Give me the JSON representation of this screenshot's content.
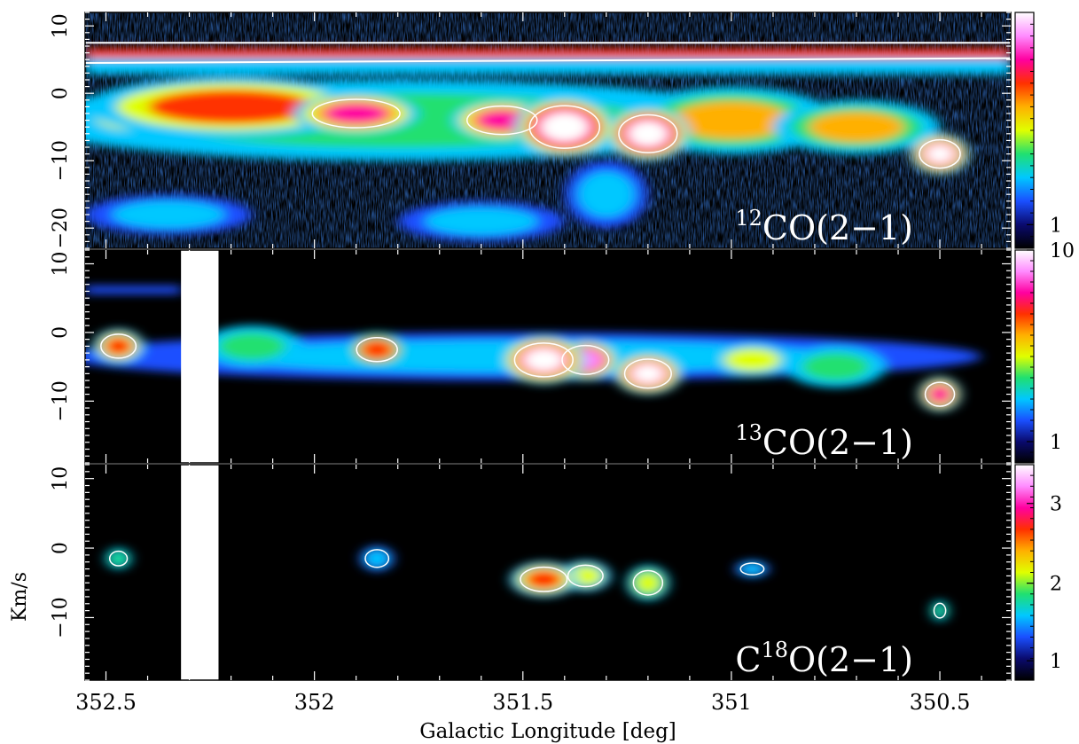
{
  "chart_data": {
    "type": "heatmap",
    "xlabel": "Galactic Longitude [deg]",
    "ylabel": "Km/s",
    "x_ticks": [
      {
        "value": 352.5,
        "label": "352.5"
      },
      {
        "value": 352.0,
        "label": "352"
      },
      {
        "value": 351.5,
        "label": "351.5"
      },
      {
        "value": 351.0,
        "label": "351"
      },
      {
        "value": 350.5,
        "label": "350.5"
      }
    ],
    "xlim": [
      352.55,
      350.33
    ],
    "colormap": [
      "#000000",
      "#0a0a6e",
      "#1a4fff",
      "#00c8ff",
      "#20e070",
      "#e0ff00",
      "#ffb000",
      "#ff3000",
      "#ff00a0",
      "#ff8cff",
      "#ffffff"
    ],
    "panels": [
      {
        "id": "12co",
        "label": {
          "pre": "",
          "sup": "12",
          "main": "CO(2−1)"
        },
        "ylim": [
          -23,
          12
        ],
        "y_ticks": [
          {
            "value": 10,
            "label": "10"
          },
          {
            "value": 0,
            "label": "0"
          },
          {
            "value": -10,
            "label": "−10"
          },
          {
            "value": -20,
            "label": "−20"
          }
        ],
        "colorbar": {
          "max_level": 10,
          "ticks": [
            {
              "level": 1,
              "label": "1"
            }
          ]
        },
        "baseline_level": 1.3,
        "lanes": [
          {
            "v_center": 5.8,
            "width": 0.9,
            "level": 6.5,
            "span": [
              352.55,
              350.33
            ]
          },
          {
            "v_center": 4.0,
            "width": 1.2,
            "level": 3.0,
            "span": [
              352.55,
              350.33
            ]
          }
        ],
        "blobs": [
          {
            "l": 352.45,
            "v": -3,
            "sl": 0.12,
            "sv": 3.5,
            "level": 4.5
          },
          {
            "l": 352.2,
            "v": -2,
            "sl": 0.35,
            "sv": 4.5,
            "level": 6.5
          },
          {
            "l": 351.9,
            "v": -3,
            "sl": 0.15,
            "sv": 3,
            "level": 8
          },
          {
            "l": 351.4,
            "v": -5,
            "sl": 0.12,
            "sv": 4.5,
            "level": 10
          },
          {
            "l": 351.55,
            "v": -4,
            "sl": 0.12,
            "sv": 3,
            "level": 8
          },
          {
            "l": 351.2,
            "v": -6,
            "sl": 0.1,
            "sv": 4,
            "level": 10
          },
          {
            "l": 351.0,
            "v": -4,
            "sl": 0.25,
            "sv": 5,
            "level": 5.5
          },
          {
            "l": 350.7,
            "v": -5,
            "sl": 0.2,
            "sv": 4,
            "level": 5.5
          },
          {
            "l": 350.5,
            "v": -9,
            "sl": 0.07,
            "sv": 3,
            "level": 9.5
          },
          {
            "l": 351.8,
            "v": -4,
            "sl": 0.9,
            "sv": 6,
            "level": 3.5
          },
          {
            "l": 352.35,
            "v": -18,
            "sl": 0.2,
            "sv": 3,
            "level": 2.8
          },
          {
            "l": 351.6,
            "v": -19,
            "sl": 0.2,
            "sv": 3,
            "level": 2.5
          },
          {
            "l": 351.3,
            "v": -15,
            "sl": 0.1,
            "sv": 5,
            "level": 3
          }
        ]
      },
      {
        "id": "13co",
        "label": {
          "pre": "",
          "sup": "13",
          "main": "CO(2−1)"
        },
        "ylim": [
          -19,
          12
        ],
        "y_ticks": [
          {
            "value": 10,
            "label": "10"
          },
          {
            "value": 0,
            "label": "0"
          },
          {
            "value": -10,
            "label": "−10"
          }
        ],
        "colorbar": {
          "max_level": 10,
          "ticks": [
            {
              "level": 10,
              "label": "10"
            },
            {
              "level": 1,
              "label": "1"
            }
          ]
        },
        "baseline_level": 0,
        "blank_span": [
          352.32,
          352.23
        ],
        "lanes": [
          {
            "v_center": 6.2,
            "width": 0.6,
            "level": 1.5,
            "span": [
              352.55,
              352.32
            ]
          }
        ],
        "blobs": [
          {
            "l": 352.47,
            "v": -2,
            "sl": 0.06,
            "sv": 2.5,
            "level": 6.5
          },
          {
            "l": 352.15,
            "v": -2,
            "sl": 0.12,
            "sv": 3,
            "level": 3.5
          },
          {
            "l": 351.85,
            "v": -2.5,
            "sl": 0.07,
            "sv": 2.5,
            "level": 7
          },
          {
            "l": 351.45,
            "v": -4,
            "sl": 0.1,
            "sv": 3.5,
            "level": 9.5
          },
          {
            "l": 351.35,
            "v": -4,
            "sl": 0.08,
            "sv": 3,
            "level": 8.5
          },
          {
            "l": 351.2,
            "v": -6,
            "sl": 0.08,
            "sv": 3,
            "level": 9.5
          },
          {
            "l": 350.95,
            "v": -4,
            "sl": 0.1,
            "sv": 2.5,
            "level": 4.5
          },
          {
            "l": 350.75,
            "v": -5,
            "sl": 0.12,
            "sv": 3,
            "level": 3.5
          },
          {
            "l": 350.5,
            "v": -9,
            "sl": 0.05,
            "sv": 2.5,
            "level": 7.5
          },
          {
            "l": 351.5,
            "v": -3.5,
            "sl": 1.1,
            "sv": 3.5,
            "level": 3.0
          }
        ]
      },
      {
        "id": "c18o",
        "label": {
          "pre": "C",
          "sup": "18",
          "main": "O(2−1)"
        },
        "ylim": [
          -19,
          12
        ],
        "y_ticks": [
          {
            "value": 10,
            "label": "10"
          },
          {
            "value": 0,
            "label": "0"
          },
          {
            "value": -10,
            "label": "−10"
          }
        ],
        "colorbar": {
          "max_level": 10,
          "ticks": [
            {
              "level": 8.2,
              "label": "3"
            },
            {
              "level": 4.5,
              "label": "2"
            },
            {
              "level": 0.9,
              "label": "1"
            }
          ]
        },
        "baseline_level": 0,
        "blank_span": [
          352.32,
          352.23
        ],
        "lanes": [],
        "blobs": [
          {
            "l": 352.47,
            "v": -1.5,
            "sl": 0.03,
            "sv": 1.5,
            "level": 3.5
          },
          {
            "l": 351.85,
            "v": -1.5,
            "sl": 0.04,
            "sv": 1.8,
            "level": 3
          },
          {
            "l": 351.45,
            "v": -4.5,
            "sl": 0.08,
            "sv": 2.5,
            "level": 6.5
          },
          {
            "l": 351.35,
            "v": -4,
            "sl": 0.06,
            "sv": 2.2,
            "level": 4.5
          },
          {
            "l": 351.2,
            "v": -5,
            "sl": 0.05,
            "sv": 2.5,
            "level": 5
          },
          {
            "l": 350.95,
            "v": -3,
            "sl": 0.04,
            "sv": 1.2,
            "level": 2.8
          },
          {
            "l": 350.5,
            "v": -9,
            "sl": 0.02,
            "sv": 1.5,
            "level": 3.5
          }
        ]
      }
    ]
  }
}
